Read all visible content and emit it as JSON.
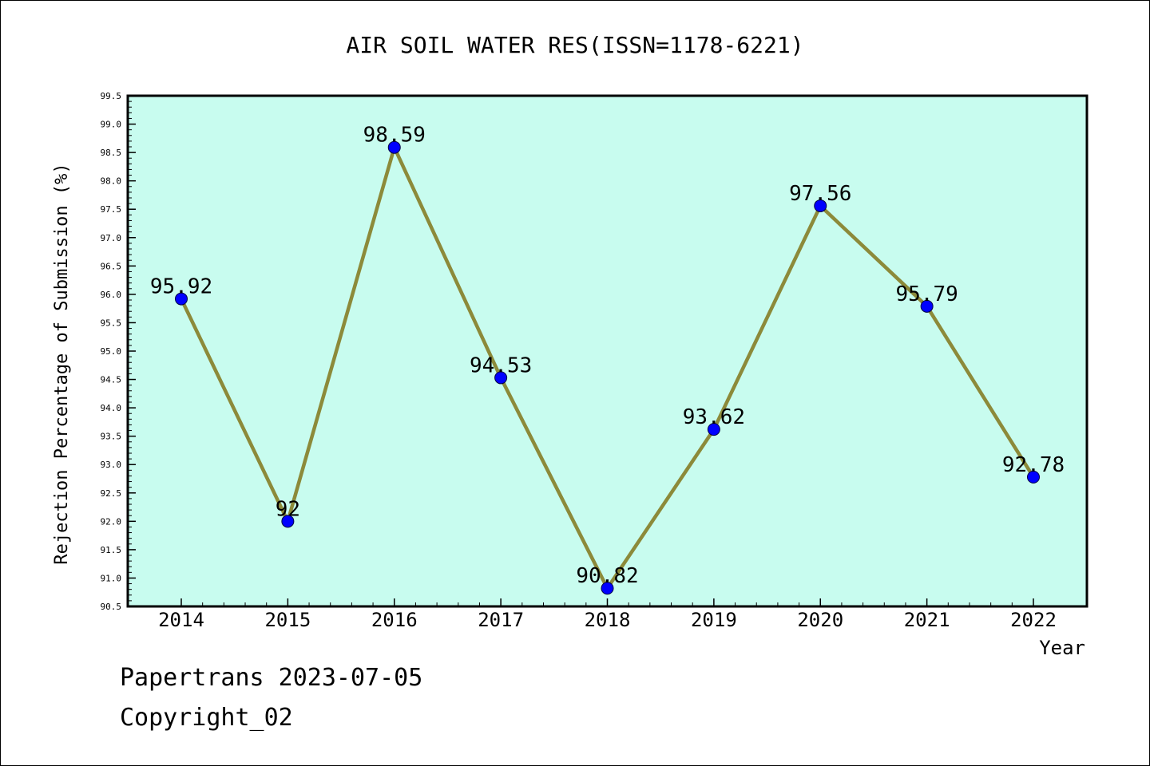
{
  "chart_data": {
    "type": "line",
    "title": "AIR SOIL WATER RES(ISSN=1178-6221)",
    "xlabel": "Year",
    "ylabel": "Rejection Percentage of Submission (%)",
    "ylim": [
      90.5,
      99.5
    ],
    "y_tick_step": 0.5,
    "grid": false,
    "categories": [
      "2014",
      "2015",
      "2016",
      "2017",
      "2018",
      "2019",
      "2020",
      "2021",
      "2022"
    ],
    "series": [
      {
        "values": [
          95.92,
          92,
          98.59,
          94.53,
          90.82,
          93.62,
          97.56,
          95.79,
          92.78
        ],
        "labels": [
          "95.92",
          "92",
          "98.59",
          "94.53",
          "90.82",
          "93.62",
          "97.56",
          "95.79",
          "92.78"
        ]
      }
    ],
    "colors": {
      "plot_background": "#c8fcef",
      "line": "#8c8a3a",
      "marker": "#0000ff"
    }
  },
  "footer": {
    "line1": "Papertrans 2023-07-05",
    "line2": "Copyright_02"
  }
}
